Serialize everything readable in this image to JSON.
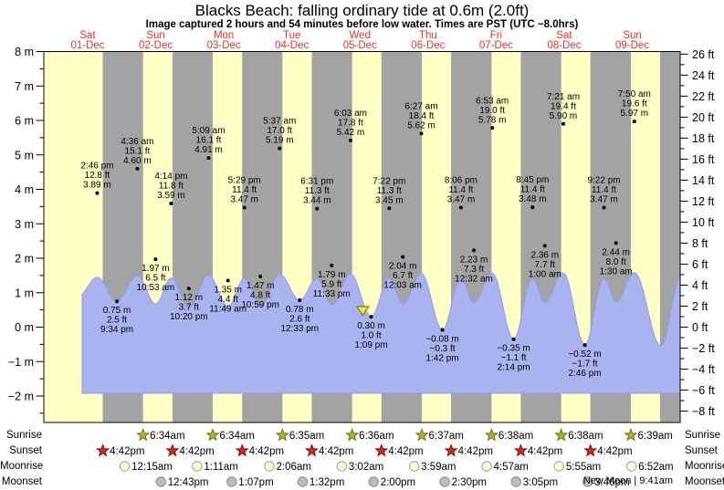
{
  "header": {
    "title": "Blacks Beach: falling ordinary tide at 0.6m (2.0ft)",
    "subtitle": "Image captured 2 hours and 54 minutes before low water. Times are PST (UTC −8.0hrs)"
  },
  "days": [
    {
      "name": "Sat",
      "date": "01-Dec"
    },
    {
      "name": "Sun",
      "date": "02-Dec"
    },
    {
      "name": "Mon",
      "date": "03-Dec"
    },
    {
      "name": "Tue",
      "date": "04-Dec"
    },
    {
      "name": "Wed",
      "date": "05-Dec"
    },
    {
      "name": "Thu",
      "date": "06-Dec"
    },
    {
      "name": "Fri",
      "date": "07-Dec"
    },
    {
      "name": "Sat",
      "date": "08-Dec"
    },
    {
      "name": "Sun",
      "date": "09-Dec"
    }
  ],
  "colors": {
    "day_bg": "#ffffc6",
    "night_band": "#a3a3a3",
    "tide_fill": "#a9b3ef",
    "tide_stroke": "#8f9ded",
    "day_label": "#e5332a",
    "sunrise_star": "#b3b32b",
    "sunrise_star_border": "#6e6e14",
    "sunset_star": "#d42a1e",
    "sunset_star_border": "#7a1208",
    "moonrise_fill": "#ffffd8",
    "moonrise_border": "#999999",
    "moonset_fill": "#bdbdbd",
    "moonset_border": "#888888",
    "marker_fill": "#efec33",
    "marker_border": "#7c7c20",
    "text": "#000000"
  },
  "chart_data": {
    "type": "area",
    "title": "Tide height curve with high/low tide annotations",
    "y_left": {
      "unit": "m",
      "min": -2,
      "max": 8,
      "tick_step": 1
    },
    "y_right": {
      "unit": "ft",
      "min": -8,
      "max": 26,
      "tick_step": 2
    },
    "tide_events": [
      {
        "day": 0,
        "time": "2:46 pm",
        "type": "high",
        "height_m": "3.89",
        "height_ft": "12.8"
      },
      {
        "day": 0,
        "time": "9:34 pm",
        "type": "low",
        "height_m": "0.75",
        "height_ft": "2.5"
      },
      {
        "day": 1,
        "time": "4:36 am",
        "type": "high",
        "height_m": "4.60",
        "height_ft": "15.1"
      },
      {
        "day": 1,
        "time": "10:53 am",
        "type": "low",
        "height_m": "1.97",
        "height_ft": "6.5"
      },
      {
        "day": 1,
        "time": "4:14 pm",
        "type": "high",
        "height_m": "3.59",
        "height_ft": "11.8"
      },
      {
        "day": 1,
        "time": "10:20 pm",
        "type": "low",
        "height_m": "1.12",
        "height_ft": "3.7"
      },
      {
        "day": 2,
        "time": "5:09 am",
        "type": "high",
        "height_m": "4.91",
        "height_ft": "16.1"
      },
      {
        "day": 2,
        "time": "11:49 am",
        "type": "low",
        "height_m": "1.35",
        "height_ft": "4.4"
      },
      {
        "day": 2,
        "time": "5:29 pm",
        "type": "high",
        "height_m": "3.47",
        "height_ft": "11.4"
      },
      {
        "day": 2,
        "time": "10:59 pm",
        "type": "low",
        "height_m": "1.47",
        "height_ft": "4.8"
      },
      {
        "day": 3,
        "time": "5:37 am",
        "type": "high",
        "height_m": "5.19",
        "height_ft": "17.0"
      },
      {
        "day": 3,
        "time": "12:33 pm",
        "type": "low",
        "height_m": "0.78",
        "height_ft": "2.6"
      },
      {
        "day": 3,
        "time": "6:31 pm",
        "type": "high",
        "height_m": "3.44",
        "height_ft": "11.3"
      },
      {
        "day": 3,
        "time": "11:33 pm",
        "type": "low",
        "height_m": "1.79",
        "height_ft": "5.9"
      },
      {
        "day": 4,
        "time": "6:03 am",
        "type": "high",
        "height_m": "5.42",
        "height_ft": "17.8"
      },
      {
        "day": 4,
        "time": "1:09 pm",
        "type": "low",
        "height_m": "0.30",
        "height_ft": "1.0"
      },
      {
        "day": 4,
        "time": "7:22 pm",
        "type": "high",
        "height_m": "3.45",
        "height_ft": "11.3"
      },
      {
        "day": 5,
        "time": "12:03 am",
        "type": "low",
        "height_m": "2.04",
        "height_ft": "6.7"
      },
      {
        "day": 5,
        "time": "6:27 am",
        "type": "high",
        "height_m": "5.62",
        "height_ft": "18.4"
      },
      {
        "day": 5,
        "time": "1:42 pm",
        "type": "low",
        "height_m": "−0.08",
        "height_ft": "−0.3"
      },
      {
        "day": 5,
        "time": "8:06 pm",
        "type": "high",
        "height_m": "3.47",
        "height_ft": "11.4"
      },
      {
        "day": 6,
        "time": "12:32 am",
        "type": "low",
        "height_m": "2.23",
        "height_ft": "7.3"
      },
      {
        "day": 6,
        "time": "6:53 am",
        "type": "high",
        "height_m": "5.78",
        "height_ft": "19.0"
      },
      {
        "day": 6,
        "time": "2:14 pm",
        "type": "low",
        "height_m": "−0.35",
        "height_ft": "−1.1"
      },
      {
        "day": 6,
        "time": "8:45 pm",
        "type": "high",
        "height_m": "3.48",
        "height_ft": "11.4"
      },
      {
        "day": 7,
        "time": "1:00 am",
        "type": "low",
        "height_m": "2.36",
        "height_ft": "7.7"
      },
      {
        "day": 7,
        "time": "7:21 am",
        "type": "high",
        "height_m": "5.90",
        "height_ft": "19.4"
      },
      {
        "day": 7,
        "time": "2:46 pm",
        "type": "low",
        "height_m": "−0.52",
        "height_ft": "−1.7"
      },
      {
        "day": 7,
        "time": "9:22 pm",
        "type": "high",
        "height_m": "3.47",
        "height_ft": "11.4"
      },
      {
        "day": 8,
        "time": "1:30 am",
        "type": "low",
        "height_m": "2.44",
        "height_ft": "8.0"
      },
      {
        "day": 8,
        "time": "7:50 am",
        "type": "high",
        "height_m": "5.97",
        "height_ft": "19.6"
      }
    ],
    "current_marker": {
      "day": 4,
      "time": "10:15 am"
    }
  },
  "sun_moon": {
    "rows": [
      {
        "id": "sunrise",
        "label": "Sunrise",
        "icon": "sunrise-star",
        "events": [
          {
            "day": 1,
            "time": "6:34am"
          },
          {
            "day": 2,
            "time": "6:34am"
          },
          {
            "day": 3,
            "time": "6:35am"
          },
          {
            "day": 4,
            "time": "6:36am"
          },
          {
            "day": 5,
            "time": "6:37am"
          },
          {
            "day": 6,
            "time": "6:38am"
          },
          {
            "day": 7,
            "time": "6:38am"
          },
          {
            "day": 8,
            "time": "6:39am"
          }
        ]
      },
      {
        "id": "sunset",
        "label": "Sunset",
        "icon": "sunset-star",
        "events": [
          {
            "day": 0,
            "time": "4:42pm"
          },
          {
            "day": 1,
            "time": "4:42pm"
          },
          {
            "day": 2,
            "time": "4:42pm"
          },
          {
            "day": 3,
            "time": "4:42pm"
          },
          {
            "day": 4,
            "time": "4:42pm"
          },
          {
            "day": 5,
            "time": "4:42pm"
          },
          {
            "day": 6,
            "time": "4:42pm"
          },
          {
            "day": 7,
            "time": "4:42pm"
          }
        ]
      },
      {
        "id": "moonrise",
        "label": "Moonrise",
        "icon": "moonrise-circle",
        "events": [
          {
            "day": 1,
            "time": "12:15am"
          },
          {
            "day": 2,
            "time": "1:11am"
          },
          {
            "day": 3,
            "time": "2:06am"
          },
          {
            "day": 4,
            "time": "3:02am"
          },
          {
            "day": 5,
            "time": "3:59am"
          },
          {
            "day": 6,
            "time": "4:57am"
          },
          {
            "day": 7,
            "time": "5:55am"
          },
          {
            "day": 8,
            "time": "6:52am"
          }
        ]
      },
      {
        "id": "moonset",
        "label": "Moonset",
        "icon": "moonset-circle",
        "events": [
          {
            "day": 1,
            "time": "12:43pm"
          },
          {
            "day": 2,
            "time": "1:07pm"
          },
          {
            "day": 3,
            "time": "1:32pm"
          },
          {
            "day": 4,
            "time": "2:00pm"
          },
          {
            "day": 5,
            "time": "2:30pm"
          },
          {
            "day": 6,
            "time": "3:05pm"
          },
          {
            "day": 7,
            "time": "3:46pm"
          }
        ]
      }
    ],
    "new_moon": "New Moon | 9:41am"
  }
}
